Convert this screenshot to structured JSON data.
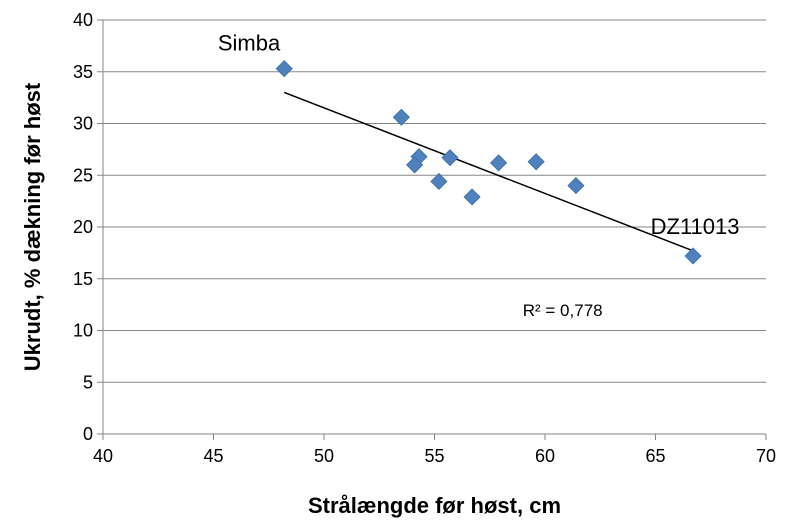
{
  "chart_data": {
    "type": "scatter",
    "xlabel": "Strålængde før høst, cm",
    "ylabel": "Ukrudt, % dækning før høst",
    "xlim": [
      40,
      70
    ],
    "ylim": [
      0,
      40
    ],
    "x_ticks": [
      "40",
      "45",
      "50",
      "55",
      "60",
      "65",
      "70"
    ],
    "y_ticks": [
      "0",
      "5",
      "10",
      "15",
      "20",
      "25",
      "30",
      "35",
      "40"
    ],
    "grid": "horizontal",
    "marker_color": "#4F81BD",
    "trendline_color": "#000000",
    "points": [
      {
        "x": 48.2,
        "y": 35.3
      },
      {
        "x": 53.5,
        "y": 30.6
      },
      {
        "x": 54.3,
        "y": 26.8
      },
      {
        "x": 54.1,
        "y": 26.0
      },
      {
        "x": 55.7,
        "y": 26.7
      },
      {
        "x": 55.2,
        "y": 24.4
      },
      {
        "x": 56.7,
        "y": 22.9
      },
      {
        "x": 57.9,
        "y": 26.2
      },
      {
        "x": 59.6,
        "y": 26.3
      },
      {
        "x": 61.4,
        "y": 24.0
      },
      {
        "x": 66.7,
        "y": 17.2
      }
    ],
    "trendline": {
      "x": [
        48.2,
        66.7
      ],
      "y": [
        33.0,
        17.7
      ]
    },
    "annotations": [
      {
        "text": "Simba",
        "x": 48.2,
        "y": 35.3
      },
      {
        "text": "DZ11013",
        "x": 66.7,
        "y": 17.2
      },
      {
        "text": "R² = 0,778",
        "x": 60.8,
        "y": 12.0
      }
    ]
  }
}
